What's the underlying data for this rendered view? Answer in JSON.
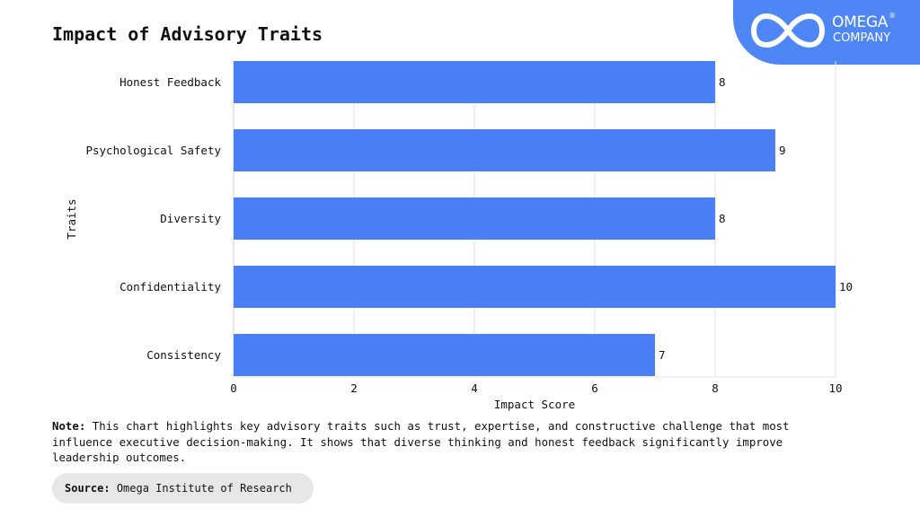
{
  "header": {
    "title": "Impact of Advisory Traits"
  },
  "logo": {
    "name": "OMEGA",
    "sub": "COMPANY",
    "reg": "®",
    "icon": "infinity-icon",
    "bg_color": "#4e86f5"
  },
  "chart_data": {
    "type": "bar",
    "orientation": "horizontal",
    "title": "Impact of Advisory Traits",
    "xlabel": "Impact Score",
    "ylabel": "Traits",
    "categories": [
      "Honest Feedback",
      "Psychological Safety",
      "Diversity",
      "Confidentiality",
      "Consistency"
    ],
    "values": [
      8,
      9,
      8,
      10,
      7
    ],
    "xlim": [
      0,
      10
    ],
    "xticks": [
      0,
      2,
      4,
      6,
      8,
      10
    ],
    "grid": "vertical",
    "bar_color": "#4a7ff5",
    "data_labels": true
  },
  "footer": {
    "note_label": "Note:",
    "note_text": "This chart highlights key advisory traits such as trust, expertise, and constructive challenge that most influence executive decision-making. It shows that diverse thinking and honest feedback significantly improve leadership outcomes.",
    "source_label": "Source:",
    "source_text": "Omega Institute of Research"
  }
}
